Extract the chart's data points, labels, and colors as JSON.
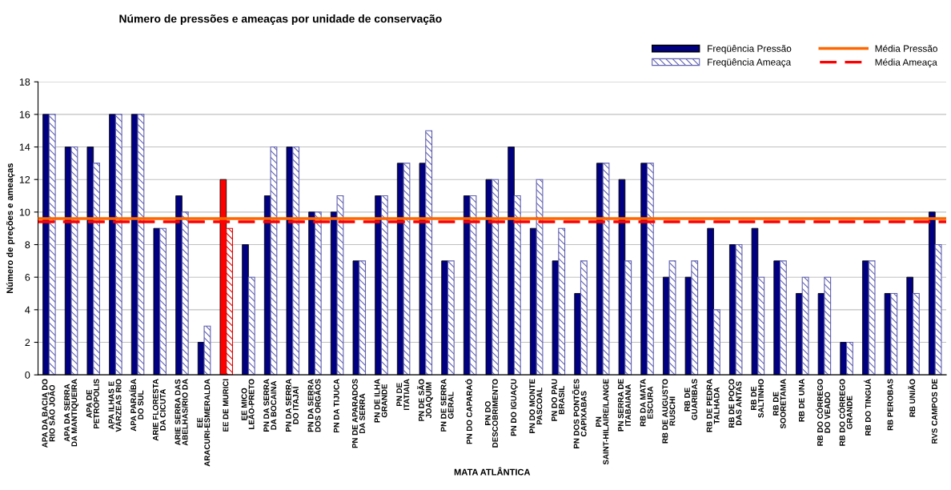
{
  "chart_data": {
    "type": "bar",
    "title": "Número de pressões e ameaças por unidade de conservação",
    "xlabel": "MATA ATLÂNTICA",
    "ylabel": "Número de preções e ameaças",
    "categories": [
      "APA DA BACIA DO RIO SÃO JOÃO",
      "APA DA SERRA DA MANTIQUEIRA",
      "APA DE PETRÓPOLIS",
      "APA ILHAS E VÁRZEAS RIO",
      "APA PARAÍBA DO SUL",
      "ARIE FLORESTA DA CICUTA",
      "ARIE SERRA DAS ABELHAS/RIO DA",
      "EE ARACURI-ESMERALDA",
      "EE DE MURICI",
      "EE MICO LEÃO-PRETO",
      "PN DA SERRA DA BOCAINA",
      "PN DA SERRA DO ITAJAÍ",
      "PN DA SERRA DOS ORGÃOS",
      "PN DA TIJUCA",
      "PN DE APARADOS DA SERRA",
      "PN DE ILHA GRANDE",
      "PN DE ITATIAIA",
      "PN DE SÃO JOAQUIM",
      "PN DE SERRA GERAL",
      "PN DO CAPARAÓ",
      "PN DO DESCOBRIMENTO",
      "PN DO IGUAÇU",
      "PN DO MONTE PASCOAL",
      "PN DO PAU BRASIL",
      "PN DOS PONTÕES CAPIXABAS",
      "PN SAINT-HILAIRE/LANGE",
      "PN SERRA DE ITABAIANA",
      "RB DA MATA ESCURA",
      "RB DE AUGUSTO RUSCHI",
      "RB DE GUARIBAS",
      "RB DE PEDRA TALHADA",
      "RB DE POÇO DAS ANTAS",
      "RB DE SALTINHO",
      "RB DE SOORETAMA",
      "RB DE UNA",
      "RB DO CÓRREGO DO VEADO",
      "RB DO CÓRREGO GRANDE",
      "RB DO TINGUÁ",
      "RB PEROBAS",
      "RB UNIÃO",
      "RVS CAMPOS DE"
    ],
    "series": [
      {
        "name": "Freqüência Pressão",
        "color": "#000080",
        "colors": [
          "#000080",
          "#000080",
          "#000080",
          "#000080",
          "#000080",
          "#000080",
          "#000080",
          "#000080",
          "#ff0000",
          "#000080",
          "#000080",
          "#000080",
          "#000080",
          "#000080",
          "#000080",
          "#000080",
          "#000080",
          "#000080",
          "#000080",
          "#000080",
          "#000080",
          "#000080",
          "#000080",
          "#000080",
          "#000080",
          "#000080",
          "#000080",
          "#000080",
          "#000080",
          "#000080",
          "#000080",
          "#000080",
          "#000080",
          "#000080",
          "#000080",
          "#000080",
          "#000080",
          "#000080",
          "#000080",
          "#000080",
          "#000080"
        ],
        "values": [
          16,
          14,
          14,
          16,
          16,
          9,
          11,
          2,
          12,
          8,
          11,
          14,
          10,
          10,
          7,
          11,
          13,
          13,
          7,
          11,
          12,
          14,
          9,
          7,
          5,
          13,
          12,
          13,
          6,
          6,
          9,
          8,
          9,
          7,
          5,
          5,
          2,
          7,
          5,
          6,
          10
        ]
      },
      {
        "name": "Freqüência Ameaça",
        "color": "#6060b0",
        "colors": [
          "#6060b0",
          "#6060b0",
          "#6060b0",
          "#6060b0",
          "#6060b0",
          "#6060b0",
          "#6060b0",
          "#6060b0",
          "#e00000",
          "#6060b0",
          "#6060b0",
          "#6060b0",
          "#6060b0",
          "#6060b0",
          "#6060b0",
          "#6060b0",
          "#6060b0",
          "#6060b0",
          "#6060b0",
          "#6060b0",
          "#6060b0",
          "#6060b0",
          "#6060b0",
          "#6060b0",
          "#6060b0",
          "#6060b0",
          "#6060b0",
          "#6060b0",
          "#6060b0",
          "#6060b0",
          "#6060b0",
          "#6060b0",
          "#6060b0",
          "#6060b0",
          "#6060b0",
          "#6060b0",
          "#6060b0",
          "#6060b0",
          "#6060b0",
          "#6060b0",
          "#6060b0"
        ],
        "values": [
          16,
          14,
          13,
          16,
          16,
          9,
          10,
          3,
          9,
          6,
          14,
          14,
          10,
          11,
          7,
          11,
          13,
          15,
          7,
          11,
          12,
          11,
          12,
          9,
          7,
          13,
          7,
          13,
          7,
          7,
          4,
          8,
          6,
          7,
          6,
          6,
          2,
          7,
          5,
          5,
          8
        ]
      }
    ],
    "ref_lines": [
      {
        "axis": "y",
        "value": 9.6,
        "label": "Média Pressão",
        "color": "#ff6600",
        "line_style": "solid"
      },
      {
        "axis": "y",
        "value": 9.4,
        "label": "Média Ameaça",
        "color": "#ff0000",
        "line_style": "dashed"
      }
    ],
    "ylim": [
      0,
      18
    ],
    "yticks": [
      0,
      2,
      4,
      6,
      8,
      10,
      12,
      14,
      16,
      18
    ],
    "grid": "y",
    "legend": "top right"
  }
}
